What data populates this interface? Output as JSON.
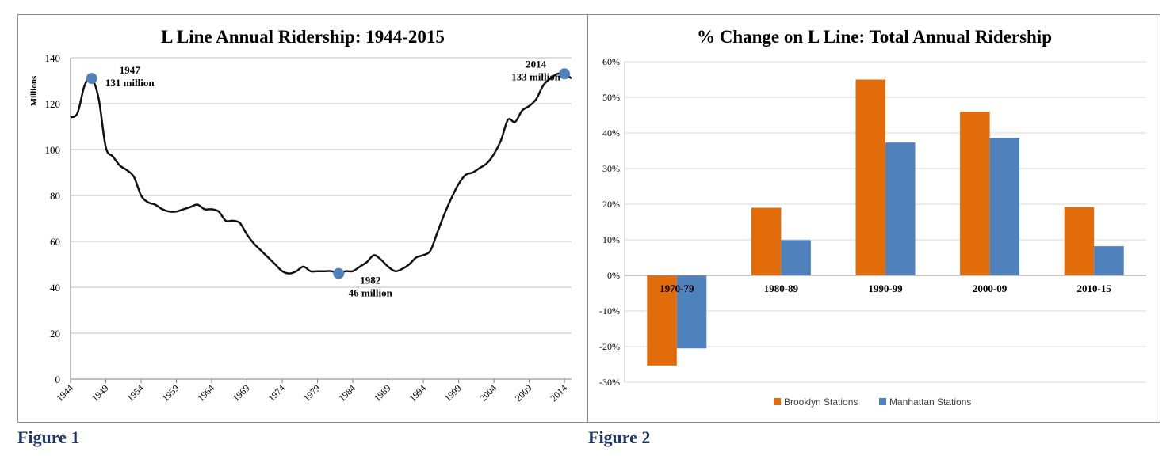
{
  "captions": {
    "figure1": "Figure 1",
    "figure2": "Figure 2"
  },
  "colors": {
    "line": "#111111",
    "point": "#4f81bd",
    "brooklyn": "#e36c0a",
    "manhattan": "#4f81bd",
    "grid": "#bfbfbf",
    "caption": "#1f3864"
  },
  "chart_data": [
    {
      "type": "line",
      "title": "L Line Annual Ridership: 1944-2015",
      "xlabel": "",
      "ylabel": "Millions",
      "xlim": [
        1944,
        2015
      ],
      "ylim": [
        0,
        140
      ],
      "yticks": [
        0,
        20,
        40,
        60,
        80,
        100,
        120,
        140
      ],
      "xticks": [
        "1944",
        "1949",
        "1954",
        "1959",
        "1964",
        "1969",
        "1974",
        "1979",
        "1984",
        "1989",
        "1994",
        "1999",
        "2004",
        "2009",
        "2014"
      ],
      "grid": true,
      "series": [
        {
          "x": [
            1944,
            1945,
            1946,
            1947,
            1948,
            1949,
            1950,
            1951,
            1952,
            1953,
            1954,
            1955,
            1956,
            1957,
            1958,
            1959,
            1960,
            1961,
            1962,
            1963,
            1964,
            1965,
            1966,
            1967,
            1968,
            1969,
            1970,
            1971,
            1972,
            1973,
            1974,
            1975,
            1976,
            1977,
            1978,
            1979,
            1980,
            1981,
            1982,
            1983,
            1984,
            1985,
            1986,
            1987,
            1988,
            1989,
            1990,
            1991,
            1992,
            1993,
            1994,
            1995,
            1996,
            1997,
            1998,
            1999,
            2000,
            2001,
            2002,
            2003,
            2004,
            2005,
            2006,
            2007,
            2008,
            2009,
            2010,
            2011,
            2012,
            2013,
            2014,
            2015
          ],
          "y": [
            114,
            116,
            128,
            131,
            122,
            101,
            97,
            93,
            91,
            88,
            80,
            77,
            76,
            74,
            73,
            73,
            74,
            75,
            76,
            74,
            74,
            73,
            69,
            69,
            68,
            63,
            59,
            56,
            53,
            50,
            47,
            46,
            47,
            49,
            47,
            47,
            47,
            47,
            46,
            47,
            47,
            49,
            51,
            54,
            52,
            49,
            47,
            48,
            50,
            53,
            54,
            56,
            64,
            72,
            79,
            85,
            89,
            90,
            92,
            94,
            98,
            104,
            113,
            112,
            117,
            119,
            122,
            128,
            131,
            133,
            133,
            131
          ],
          "annotations": [
            {
              "x": 1947,
              "y": 131,
              "year": "1947",
              "label": "131 million"
            },
            {
              "x": 1982,
              "y": 46,
              "year": "1982",
              "label": "46 million"
            },
            {
              "x": 2014,
              "y": 133,
              "year": "2014",
              "label": "133 million"
            }
          ]
        }
      ]
    },
    {
      "type": "bar",
      "title": "% Change on L Line: Total Annual Ridership",
      "xlabel": "",
      "ylabel": "",
      "categories": [
        "1970-79",
        "1980-89",
        "1990-99",
        "2000-09",
        "2010-15"
      ],
      "ylim": [
        -30,
        60
      ],
      "yticks": [
        -30,
        -20,
        -10,
        0,
        10,
        20,
        30,
        40,
        50,
        60
      ],
      "tick_suffix": "%",
      "grid": true,
      "legend": "bottom",
      "series": [
        {
          "name": "Brooklyn Stations",
          "values": [
            -25.3,
            19,
            55,
            46,
            19.2
          ]
        },
        {
          "name": "Manhattan Stations",
          "values": [
            -20.5,
            9.9,
            37.3,
            38.6,
            8.2
          ]
        }
      ]
    }
  ]
}
